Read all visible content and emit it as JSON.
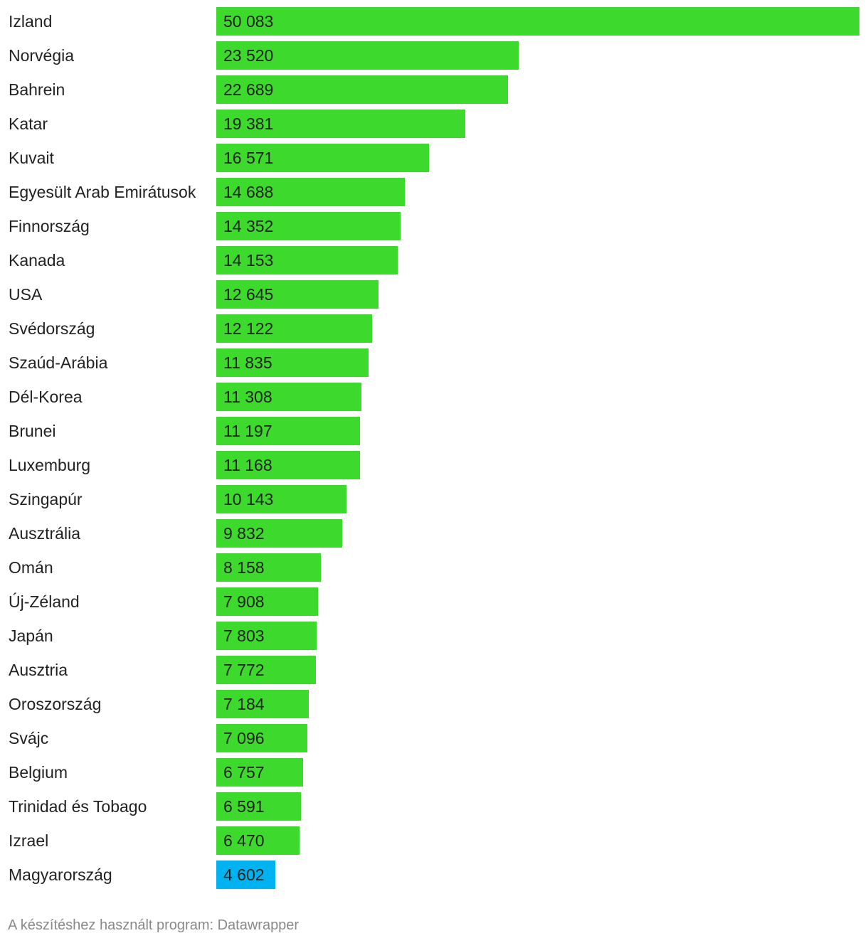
{
  "chart_data": {
    "type": "bar",
    "orientation": "horizontal",
    "categories": [
      "Izland",
      "Norvégia",
      "Bahrein",
      "Katar",
      "Kuvait",
      "Egyesült Arab Emirátusok",
      "Finnország",
      "Kanada",
      "USA",
      "Svédország",
      "Szaúd-Arábia",
      "Dél-Korea",
      "Brunei",
      "Luxemburg",
      "Szingapúr",
      "Ausztrália",
      "Omán",
      "Új-Zéland",
      "Japán",
      "Ausztria",
      "Oroszország",
      "Svájc",
      "Belgium",
      "Trinidad és Tobago",
      "Izrael",
      "Magyarország"
    ],
    "values": [
      50083,
      23520,
      22689,
      19381,
      16571,
      14688,
      14352,
      14153,
      12645,
      12122,
      11835,
      11308,
      11197,
      11168,
      10143,
      9832,
      8158,
      7908,
      7803,
      7772,
      7184,
      7096,
      6757,
      6591,
      6470,
      4602
    ],
    "value_labels": [
      "50 083",
      "23 520",
      "22 689",
      "19 381",
      "16 571",
      "14 688",
      "14 352",
      "14 153",
      "12 645",
      "12 122",
      "11 835",
      "11 308",
      "11 197",
      "11 168",
      "10 143",
      "9 832",
      "8 158",
      "7 908",
      "7 803",
      "7 772",
      "7 184",
      "7 096",
      "6 757",
      "6 591",
      "6 470",
      "4 602"
    ],
    "highlight": "Magyarország",
    "colors": {
      "default": "#3dd92d",
      "highlight": "#00b2f0"
    },
    "xlim": [
      0,
      50083
    ],
    "grid": false
  },
  "footer": {
    "credit": "A készítéshez használt program: Datawrapper"
  }
}
